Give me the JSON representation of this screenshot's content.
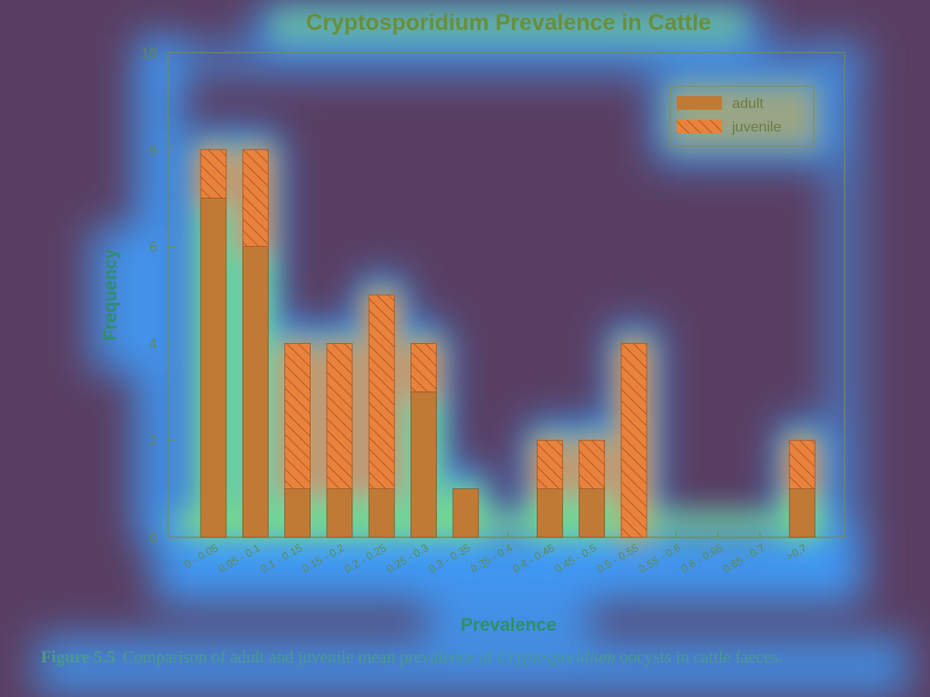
{
  "chart_data": {
    "type": "bar",
    "stacked": true,
    "title": "Cryptosporidium Prevalence in Cattle",
    "xlabel": "Prevalence",
    "ylabel": "Frequency",
    "ylim": [
      0,
      10
    ],
    "yticks": [
      0,
      2,
      4,
      6,
      8,
      10
    ],
    "categories": [
      "0 - 0.05",
      "0.05 - 0.1",
      "0.1 - 0.15",
      "0.15 - 0.2",
      "0.2 - 0.25",
      "0.25 - 0.3",
      "0.3 - 0.35",
      "0.35 - 0.4",
      "0.4 - 0.45",
      "0.45 - 0.5",
      "0.5 - 0.55",
      "0.55 - 0.6",
      "0.6 - 0.65",
      "0.65 - 0.7",
      ">0.7"
    ],
    "series": [
      {
        "name": "adult",
        "values": [
          7,
          6,
          1,
          1,
          1,
          3,
          1,
          0,
          1,
          1,
          0,
          0,
          0,
          0,
          1
        ],
        "color": "#c07a35",
        "pattern": "solid"
      },
      {
        "name": "juvenile",
        "values": [
          1,
          2,
          3,
          3,
          4,
          1,
          0,
          0,
          1,
          1,
          4,
          0,
          0,
          0,
          1
        ],
        "color": "#e8823c",
        "pattern": "hatch"
      }
    ],
    "legend_position": "top-right",
    "grid": false
  },
  "caption": {
    "figure_number": "Figure 5.5",
    "text_before": "Comparison of adult and juvenile mean prevalence of ",
    "text_italic": "Cryptosporidium",
    "text_after": " oocysts in cattle faeces."
  },
  "colors": {
    "background": "#5a3f63",
    "heat_low": "#3fa0ff",
    "heat_mid": "#7fe07f",
    "heat_high": "#ff7a3a"
  }
}
